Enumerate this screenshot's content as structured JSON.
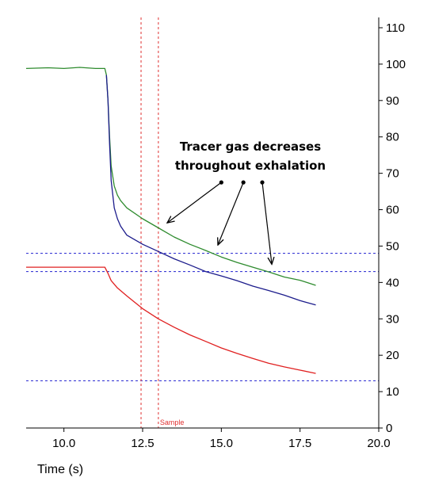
{
  "chart_data": {
    "type": "line",
    "title": "",
    "xlabel": "Time (s)",
    "ylabel": "",
    "xlim": [
      8.8,
      20.0
    ],
    "ylim": [
      0,
      110
    ],
    "x_ticks": [
      10.0,
      12.5,
      15.0,
      17.5,
      20.0
    ],
    "x_tick_labels": [
      "10.0",
      "12.5",
      "15.0",
      "17.5",
      "20.0"
    ],
    "y_ticks": [
      0,
      10,
      20,
      30,
      40,
      50,
      60,
      70,
      80,
      90,
      100,
      110
    ],
    "y_tick_labels": [
      "0",
      "10",
      "20",
      "30",
      "40",
      "50",
      "60",
      "70",
      "80",
      "90",
      "100",
      "110"
    ],
    "y_axis_side": "right",
    "grid": false,
    "series": [
      {
        "color": "#2e8b2e",
        "x": [
          8.8,
          9.5,
          10.0,
          10.5,
          11.0,
          11.3,
          11.35,
          11.4,
          11.45,
          11.5,
          11.6,
          11.7,
          11.8,
          12.0,
          12.5,
          13.0,
          13.5,
          14.0,
          14.5,
          15.0,
          15.5,
          16.0,
          16.5,
          17.0,
          17.5,
          18.0
        ],
        "y": [
          98.8,
          99.0,
          98.8,
          99.1,
          98.8,
          98.8,
          97,
          90,
          80,
          72,
          66.5,
          64,
          62.5,
          60.5,
          57.5,
          55,
          52.5,
          50.5,
          48.8,
          47,
          45.5,
          44.2,
          42.9,
          41.5,
          40.6,
          39.2
        ]
      },
      {
        "color": "#1c1c8c",
        "x": [
          11.35,
          11.4,
          11.45,
          11.5,
          11.6,
          11.7,
          11.8,
          12.0,
          12.5,
          13.0,
          13.5,
          14.0,
          14.5,
          15.0,
          15.5,
          16.0,
          16.5,
          17.0,
          17.5,
          18.0
        ],
        "y": [
          97,
          90,
          78,
          68,
          60.5,
          57.5,
          55.5,
          53,
          50.5,
          48.5,
          46.5,
          44.8,
          43,
          41.8,
          40.5,
          39,
          37.8,
          36.5,
          35,
          33.8
        ]
      },
      {
        "color": "#e02020",
        "x": [
          8.8,
          9.5,
          10.0,
          10.5,
          11.0,
          11.3,
          11.4,
          11.5,
          11.7,
          12.0,
          12.5,
          13.0,
          13.5,
          14.0,
          14.5,
          15.0,
          15.5,
          16.0,
          16.5,
          17.0,
          17.5,
          18.0
        ],
        "y": [
          44.2,
          44.2,
          44.2,
          44.2,
          44.2,
          44.2,
          42.5,
          40.5,
          38.5,
          36.3,
          32.8,
          30.0,
          27.7,
          25.6,
          23.8,
          22.0,
          20.5,
          19.1,
          17.8,
          16.8,
          15.9,
          15.0
        ]
      }
    ],
    "horizontal_lines": [
      {
        "y": 48,
        "color": "#2020d0"
      },
      {
        "y": 43,
        "color": "#2020d0"
      },
      {
        "y": 13,
        "color": "#2020d0"
      }
    ],
    "vertical_lines": [
      {
        "x": 12.45,
        "color": "#e03030"
      },
      {
        "x": 13.0,
        "color": "#e03030",
        "label": "Sample"
      }
    ],
    "annotation": {
      "lines": [
        "Tracer gas decreases",
        "throughout exhalation"
      ],
      "pointer_dots": [
        [
          15.0,
          67.5
        ],
        [
          15.7,
          67.5
        ],
        [
          16.3,
          67.5
        ]
      ],
      "pointer_targets": [
        [
          13.3,
          56.5
        ],
        [
          14.9,
          50.5
        ],
        [
          16.6,
          45.2
        ]
      ]
    }
  }
}
